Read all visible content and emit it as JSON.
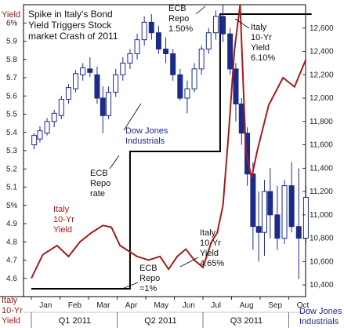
{
  "chart_data": {
    "type": "candlestick+line+step",
    "title": [
      "Spike in Italy's Bond",
      "Yield Triggers Stock",
      "market Crash of 2011"
    ],
    "months": [
      "Jan",
      "Feb",
      "Mar",
      "Apr",
      "May",
      "Jun",
      "Jul",
      "Aug",
      "Sep",
      "Oct"
    ],
    "quarters": [
      "Q1 2011",
      "Q2 2011",
      "Q3 2011"
    ],
    "left_axis": {
      "unit_label": "Yield",
      "ticks": [
        "6%",
        "5.9",
        "5.8",
        "5.7",
        "5.6",
        "5.5",
        "5.4",
        "5.3",
        "5.2",
        "5.1",
        "5%",
        "4.9",
        "4.8",
        "4.7",
        "4.6"
      ],
      "bottom_label": [
        "Italy",
        "10-Yr",
        "Yield"
      ],
      "range": [
        4.5,
        6.1
      ]
    },
    "right_axis": {
      "ticks": [
        "12,600",
        "12,400",
        "12,200",
        "12,000",
        "11,800",
        "11,600",
        "11,400",
        "11,200",
        "11,000",
        "10,800",
        "10,600",
        "10,400"
      ],
      "bottom_label": [
        "Dow Jones",
        "Industrials"
      ],
      "range": [
        10300,
        12800
      ]
    },
    "annotations": {
      "ecb_top": [
        "ECB",
        "Repo",
        "1.50%"
      ],
      "ecb_mid": [
        "ECB",
        "Repo",
        "rate"
      ],
      "ecb_low": [
        "ECB",
        "Repo",
        "=1%"
      ],
      "italy_top": [
        "Italy",
        "10-Yr",
        "Yield",
        "6.10%"
      ],
      "italy_mid": [
        "Italy",
        "10-Yr",
        "Yield"
      ],
      "italy_low": [
        "Italy",
        "10-Yr",
        "Yield",
        "4.65%"
      ],
      "dow": [
        "Dow Jones",
        "Industrials"
      ]
    },
    "ecb_repo_rate": [
      [
        0.0,
        1.0
      ],
      [
        3.45,
        1.0
      ],
      [
        3.45,
        1.25
      ],
      [
        6.6,
        1.25
      ],
      [
        6.6,
        1.5
      ],
      [
        9.8,
        1.5
      ]
    ],
    "italy_yield": [
      [
        0.0,
        4.6
      ],
      [
        0.4,
        4.73
      ],
      [
        0.9,
        4.78
      ],
      [
        1.3,
        4.72
      ],
      [
        1.7,
        4.8
      ],
      [
        2.1,
        4.85
      ],
      [
        2.5,
        4.89
      ],
      [
        2.8,
        4.88
      ],
      [
        3.1,
        4.78
      ],
      [
        3.4,
        4.75
      ],
      [
        3.7,
        4.72
      ],
      [
        4.1,
        4.7
      ],
      [
        4.5,
        4.72
      ],
      [
        4.8,
        4.65
      ],
      [
        5.1,
        4.72
      ],
      [
        5.4,
        4.76
      ],
      [
        5.7,
        4.7
      ],
      [
        6.0,
        4.66
      ],
      [
        6.3,
        4.8
      ],
      [
        6.5,
        4.85
      ],
      [
        6.7,
        5.0
      ],
      [
        6.9,
        5.4
      ],
      [
        7.1,
        5.85
      ],
      [
        7.3,
        6.1
      ],
      [
        7.5,
        5.3
      ],
      [
        7.7,
        5.15
      ],
      [
        7.9,
        5.3
      ],
      [
        8.3,
        5.55
      ],
      [
        8.8,
        5.7
      ],
      [
        9.2,
        5.65
      ],
      [
        9.6,
        5.8
      ]
    ],
    "dow_weekly": [
      [
        0.1,
        11600,
        11700,
        11560,
        11680
      ],
      [
        0.3,
        11650,
        11760,
        11620,
        11720
      ],
      [
        0.55,
        11700,
        11830,
        11680,
        11800
      ],
      [
        0.8,
        11800,
        11900,
        11750,
        11870
      ],
      [
        1.05,
        11850,
        12020,
        11820,
        11990
      ],
      [
        1.3,
        11990,
        12120,
        11950,
        12090
      ],
      [
        1.55,
        12080,
        12240,
        12050,
        12210
      ],
      [
        1.8,
        12200,
        12300,
        12150,
        12260
      ],
      [
        2.05,
        12250,
        12350,
        12180,
        12220
      ],
      [
        2.3,
        12200,
        12270,
        11950,
        12000
      ],
      [
        2.5,
        12000,
        12100,
        11700,
        11850
      ],
      [
        2.7,
        11850,
        12100,
        11820,
        12050
      ],
      [
        2.95,
        12050,
        12250,
        12010,
        12200
      ],
      [
        3.2,
        12200,
        12350,
        12150,
        12300
      ],
      [
        3.45,
        12300,
        12420,
        12250,
        12380
      ],
      [
        3.7,
        12380,
        12550,
        12330,
        12500
      ],
      [
        3.95,
        12500,
        12700,
        12450,
        12650
      ],
      [
        4.2,
        12650,
        12720,
        12500,
        12560
      ],
      [
        4.45,
        12560,
        12620,
        12380,
        12420
      ],
      [
        4.7,
        12420,
        12520,
        12300,
        12380
      ],
      [
        4.95,
        12380,
        12420,
        12150,
        12200
      ],
      [
        5.2,
        12200,
        12250,
        11980,
        12000
      ],
      [
        5.45,
        12000,
        12150,
        11870,
        12080
      ],
      [
        5.7,
        12080,
        12300,
        12050,
        12250
      ],
      [
        5.95,
        12250,
        12450,
        12200,
        12420
      ],
      [
        6.2,
        12420,
        12600,
        12380,
        12560
      ],
      [
        6.45,
        12560,
        12750,
        12500,
        12700
      ],
      [
        6.7,
        12700,
        12800,
        12480,
        12550
      ],
      [
        6.95,
        12550,
        12600,
        12200,
        12250
      ],
      [
        7.15,
        12250,
        12300,
        11800,
        11950
      ],
      [
        7.35,
        11950,
        12000,
        11600,
        11700
      ],
      [
        7.55,
        11700,
        11750,
        11250,
        11350
      ],
      [
        7.75,
        11350,
        11450,
        10700,
        10900
      ],
      [
        7.95,
        10900,
        11200,
        10600,
        10850
      ],
      [
        8.15,
        10850,
        11300,
        10650,
        11200
      ],
      [
        8.35,
        11200,
        11400,
        10800,
        11000
      ],
      [
        8.6,
        11000,
        11250,
        10700,
        10800
      ],
      [
        8.85,
        10800,
        11300,
        10750,
        11250
      ],
      [
        9.1,
        11250,
        11450,
        10850,
        10900
      ],
      [
        9.35,
        10900,
        11400,
        10450,
        10800
      ],
      [
        9.6,
        10800,
        11250,
        10750,
        11150
      ]
    ]
  }
}
